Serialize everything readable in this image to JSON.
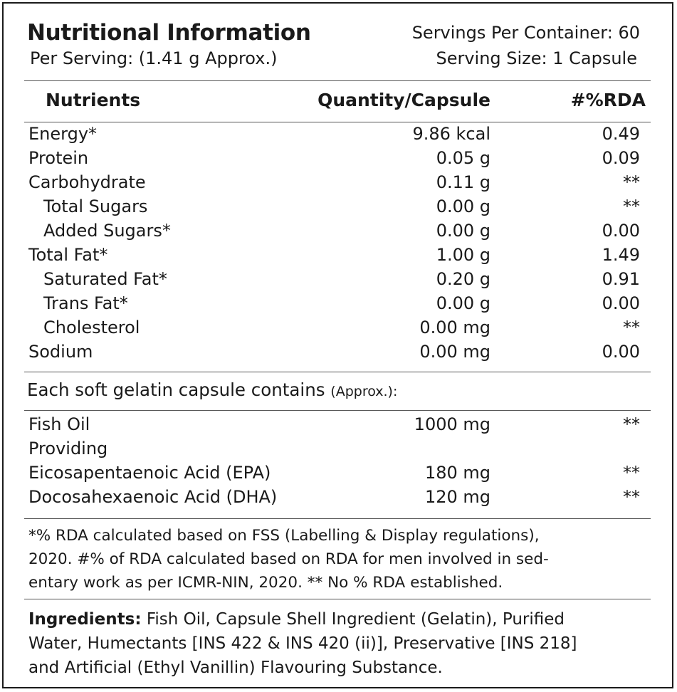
{
  "header": {
    "title": "Nutritional Information",
    "per_serving": "Per Serving: (1.41 g Approx.)",
    "servings_per_container": "Servings Per Container: 60",
    "serving_size": "Serving Size: 1 Capsule"
  },
  "table": {
    "columns": [
      "Nutrients",
      "Quantity/Capsule",
      "#%RDA"
    ],
    "rows": [
      {
        "name": "Energy*",
        "qty": "9.86 kcal",
        "rda": "0.49"
      },
      {
        "name": "Protein",
        "qty": "0.05 g",
        "rda": "0.09"
      },
      {
        "name": "Carbohydrate",
        "qty": "0.11 g",
        "rda": "**"
      },
      {
        "name": "Total Sugars",
        "qty": "0.00 g",
        "rda": "**"
      },
      {
        "name": "Added Sugars*",
        "qty": "0.00 g",
        "rda": "0.00"
      },
      {
        "name": "Total Fat*",
        "qty": "1.00 g",
        "rda": "1.49"
      },
      {
        "name": "Saturated Fat*",
        "qty": "0.20 g",
        "rda": "0.91"
      },
      {
        "name": "Trans Fat*",
        "qty": "0.00 g",
        "rda": "0.00"
      },
      {
        "name": "Cholesterol",
        "qty": "0.00 mg",
        "rda": "**"
      },
      {
        "name": "Sodium",
        "qty": "0.00 mg",
        "rda": "0.00"
      }
    ]
  },
  "capsule": {
    "heading": "Each soft gelatin capsule contains",
    "heading_note": "(Approx.):",
    "rows": [
      {
        "name": "Fish Oil",
        "qty": "1000 mg",
        "rda": "**"
      },
      {
        "name": "Providing",
        "qty": "",
        "rda": ""
      },
      {
        "name": "Eicosapentaenoic Acid (EPA)",
        "qty": "180 mg",
        "rda": "**"
      },
      {
        "name": "Docosahexaenoic Acid (DHA)",
        "qty": "120 mg",
        "rda": "**"
      }
    ]
  },
  "footnote": {
    "line1": "*% RDA calculated based on FSS (Labelling & Display regulations),",
    "line2": "2020. #% of RDA calculated based on RDA for men involved in sed-",
    "line3": "entary work as per ICMR-NIN, 2020. ** No % RDA established."
  },
  "ingredients": {
    "label": "Ingredients:",
    "line1": " Fish Oil, Capsule Shell Ingredient (Gelatin), Purified",
    "line2": "Water, Humectants [INS 422 & INS 420 (ii)], Preservative [INS 218]",
    "line3": "and Artificial (Ethyl Vanillin) Flavouring Substance."
  }
}
